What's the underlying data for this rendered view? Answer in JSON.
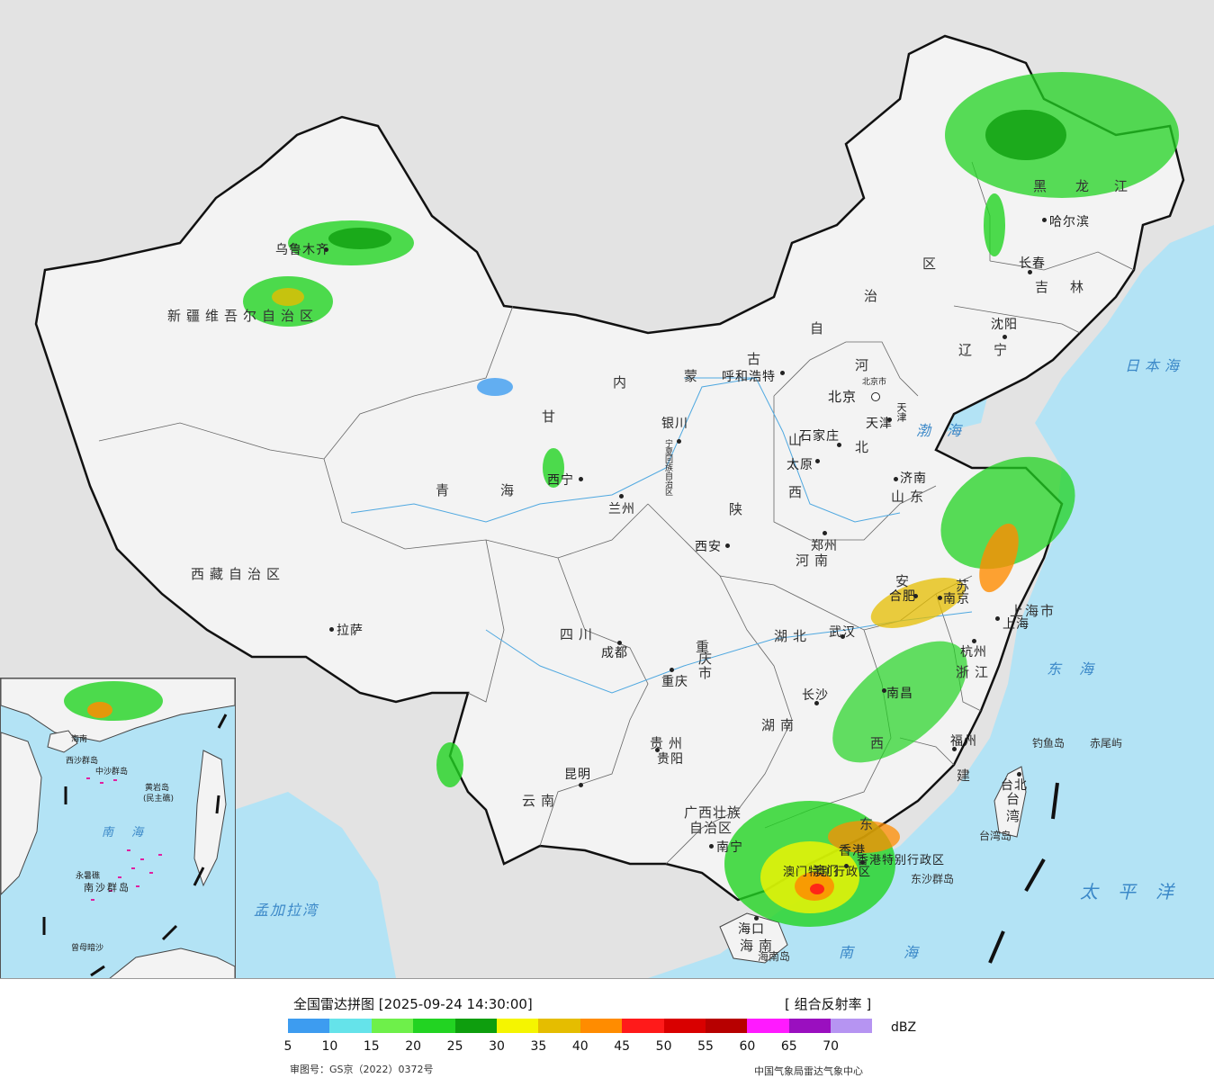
{
  "legend": {
    "title": "全国雷达拼图 [2025-09-24 14:30:00]",
    "product": "[ 组合反射率 ]",
    "unit": "dBZ",
    "ticks": [
      "5",
      "10",
      "15",
      "20",
      "25",
      "30",
      "35",
      "40",
      "45",
      "50",
      "55",
      "60",
      "65",
      "70"
    ],
    "colors": [
      "#3d9cf0",
      "#65e3ea",
      "#6ef04a",
      "#22d322",
      "#0e9e0e",
      "#f5f500",
      "#e5bd00",
      "#ff8c00",
      "#ff1a1a",
      "#d90000",
      "#b70000",
      "#ff1aff",
      "#9a0fbf",
      "#b694f2"
    ],
    "approval": "审图号：GS京（2022）0372号",
    "agency": "中国气象局雷达气象中心"
  },
  "labels": {
    "provinces": {
      "xinjiang": "新疆维吾尔自治区",
      "xizang": "西藏自治区",
      "qinghai_1": "青",
      "qinghai_2": "海",
      "gansu": "甘",
      "sichuan": "四川",
      "yunnan": "云南",
      "guizhou": "贵州",
      "guangxi_1": "广西壮族",
      "guangxi_2": "自治区",
      "guangdong": "东",
      "hunan": "湖南",
      "hubei": "湖北",
      "henan": "河南",
      "shaanxi": "陕",
      "shanxi_1": "山",
      "shanxi_2": "西",
      "hebei_1": "河",
      "hebei_2": "北",
      "shandong": "山东",
      "anhui": "安",
      "jiangsu": "苏",
      "zhejiang": "浙江",
      "jiangxi": "西",
      "fujian": "建",
      "chongqing_1": "重",
      "chongqing_2": "庆市",
      "ningxia": "宁夏回族自治区",
      "neimenggu_1": "内",
      "neimenggu_2": "蒙",
      "neimenggu_3": "古",
      "neimenggu_4": "自",
      "neimenggu_5": "治",
      "neimenggu_6": "区",
      "heilongjiang_1": "黑",
      "heilongjiang_2": "龙",
      "heilongjiang_3": "江",
      "jilin": "吉林",
      "liaoning": "辽宁",
      "taiwan": "台湾",
      "hainan": "海南",
      "shanghai": "上海市",
      "hongkong": "香港特别行政区",
      "macau": "澳门特别行政区",
      "tianjin": "天津"
    },
    "cities": {
      "urumqi": "乌鲁木齐",
      "lhasa": "拉萨",
      "xining": "西宁",
      "lanzhou": "兰州",
      "yinchuan": "银川",
      "hohhot": "呼和浩特",
      "beijing": "北京",
      "beijing_small": "北京市",
      "tianjin": "天津",
      "shijiazhuang": "石家庄",
      "taiyuan": "太原",
      "jinan": "济南",
      "zhengzhou": "郑州",
      "xian": "西安",
      "chengdu": "成都",
      "chongqing": "重庆",
      "wuhan": "武汉",
      "hefei": "合肥",
      "nanjing": "南京",
      "shanghai": "上海",
      "hangzhou": "杭州",
      "changsha": "长沙",
      "nanchang": "南昌",
      "fuzhou": "福州",
      "guiyang": "贵阳",
      "kunming": "昆明",
      "nanning": "南宁",
      "haikou": "海口",
      "taipei": "台北",
      "harbin": "哈尔滨",
      "changchun": "长春",
      "shenyang": "沈阳",
      "hongkong": "香港",
      "macau": "澳门"
    },
    "seas": {
      "japan": "日本海",
      "bohai": "渤海",
      "east": "东海",
      "pacific": "太平洋",
      "south": "南海",
      "bengal": "孟加拉湾",
      "taiwan_island": "台湾岛",
      "hainan_island": "海南岛",
      "diaoyu": "钓鱼岛",
      "chiwei": "赤尾屿",
      "dongsha": "东沙群岛"
    },
    "inset": {
      "hainan": "海南",
      "xisha": "西沙群岛",
      "zhongsha": "中沙群岛",
      "huangyan": "黄岩岛",
      "minzhu": "(民主礁)",
      "nanhai": "南海",
      "nansha": "南沙群岛",
      "yongshu": "永暑礁",
      "zengmu": "曾母暗沙"
    }
  }
}
